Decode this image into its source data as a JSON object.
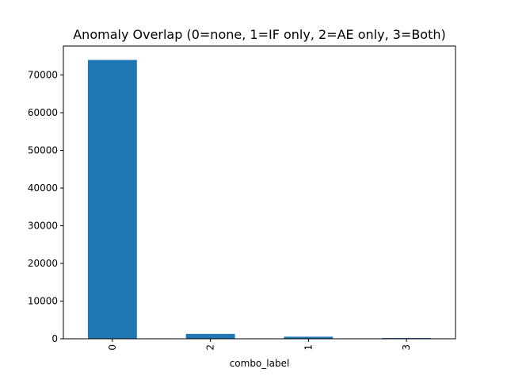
{
  "chart_data": {
    "type": "bar",
    "title": "Anomaly Overlap (0=none, 1=IF only, 2=AE only, 3=Both)",
    "xlabel": "combo_label",
    "ylabel": "",
    "categories": [
      "0",
      "2",
      "1",
      "3"
    ],
    "values": [
      74000,
      1300,
      550,
      200
    ],
    "ylim": [
      0,
      77700
    ],
    "yticks": [
      0,
      10000,
      20000,
      30000,
      40000,
      50000,
      60000,
      70000
    ],
    "ytick_labels": [
      "0",
      "10000",
      "20000",
      "30000",
      "40000",
      "50000",
      "60000",
      "70000"
    ],
    "grid": false,
    "legend": "none",
    "bar_color": "#1f77b4"
  }
}
